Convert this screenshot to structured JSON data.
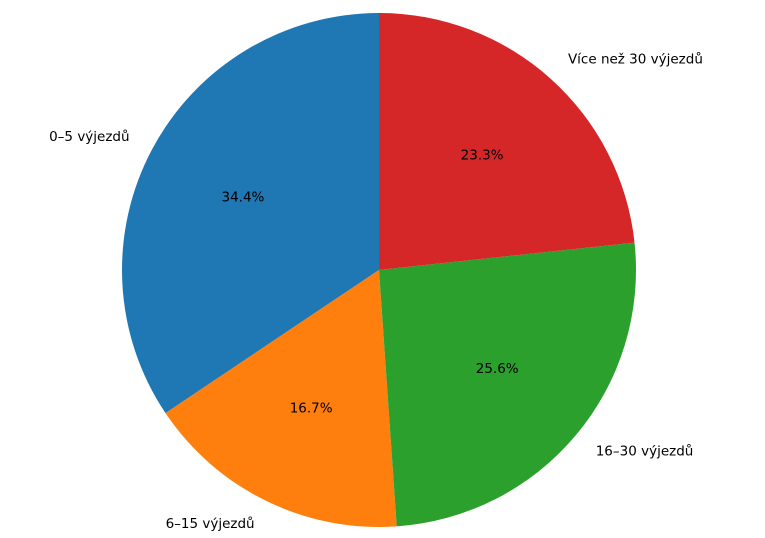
{
  "chart_data": {
    "type": "pie",
    "categories": [
      "0–5 výjezdů",
      "6–15 výjezdů",
      "16–30 výjezdů",
      "Více než 30 výjezdů"
    ],
    "values": [
      34.4,
      16.7,
      25.6,
      23.3
    ],
    "value_labels": [
      "34.4%",
      "16.7%",
      "25.6%",
      "23.3%"
    ],
    "colors": [
      "#1f77b4",
      "#ff7f0e",
      "#2ca02c",
      "#d62728"
    ]
  }
}
